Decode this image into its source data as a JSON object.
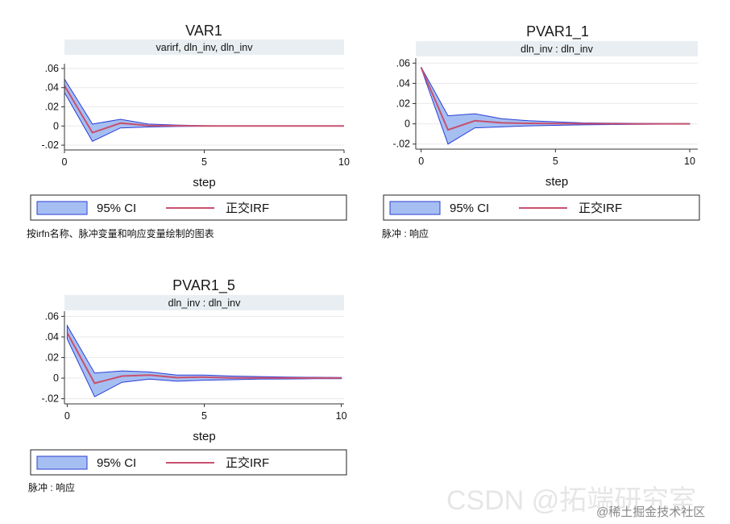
{
  "chart_data": [
    {
      "type": "area",
      "title": "VAR1",
      "subtitle": "varirf, dln_inv, dln_inv",
      "xlabel": "step",
      "ylabel": "",
      "xlim": [
        0,
        10
      ],
      "ylim": [
        -0.025,
        0.065
      ],
      "xticks": [
        {
          "v": 0,
          "t": "0"
        },
        {
          "v": 5,
          "t": "5"
        },
        {
          "v": 10,
          "t": "10"
        }
      ],
      "yticks": [
        {
          "v": 0.06,
          "t": ".06"
        },
        {
          "v": 0.04,
          "t": ".04"
        },
        {
          "v": 0.02,
          "t": ".02"
        },
        {
          "v": 0,
          "t": "0"
        },
        {
          "v": -0.02,
          "t": "-.02"
        }
      ],
      "grid": true,
      "legend": {
        "position": "bottom",
        "ci_label": "95% CI",
        "irf_label": "正交IRF"
      },
      "note": "按irfn名称、脉冲变量和响应变量绘制的图表",
      "x": [
        0,
        1,
        2,
        3,
        4,
        5,
        6,
        7,
        8,
        9,
        10
      ],
      "series": [
        {
          "role": "upper",
          "values": [
            0.049,
            0.002,
            0.007,
            0.002,
            0.001,
            0.0003,
            0.0001,
            0,
            0,
            0,
            0
          ]
        },
        {
          "role": "lower",
          "values": [
            0.035,
            -0.016,
            -0.002,
            -0.001,
            -0.0005,
            -0.0002,
            -0.0001,
            0,
            0,
            0,
            0
          ]
        },
        {
          "role": "irf",
          "values": [
            0.042,
            -0.007,
            0.003,
            0.0005,
            0.0002,
            0.0001,
            0,
            0,
            0,
            0,
            0
          ]
        }
      ]
    },
    {
      "type": "area",
      "title": "PVAR1_1",
      "subtitle": "dln_inv : dln_inv",
      "xlabel": "step",
      "ylabel": "",
      "xlim": [
        -0.2,
        10.3
      ],
      "ylim": [
        -0.025,
        0.065
      ],
      "xticks": [
        {
          "v": 0,
          "t": "0"
        },
        {
          "v": 5,
          "t": "5"
        },
        {
          "v": 10,
          "t": "10"
        }
      ],
      "yticks": [
        {
          "v": 0.06,
          "t": ".06"
        },
        {
          "v": 0.04,
          "t": ".04"
        },
        {
          "v": 0.02,
          "t": ".02"
        },
        {
          "v": 0,
          "t": "0"
        },
        {
          "v": -0.02,
          "t": "-.02"
        }
      ],
      "grid": true,
      "legend": {
        "position": "bottom",
        "ci_label": "95% CI",
        "irf_label": "正交IRF"
      },
      "note": "脉冲 : 响应",
      "x": [
        0,
        1,
        2,
        3,
        4,
        5,
        6,
        7,
        8,
        9,
        10
      ],
      "series": [
        {
          "role": "upper",
          "values": [
            0.056,
            0.008,
            0.01,
            0.005,
            0.003,
            0.002,
            0.001,
            0.0007,
            0.0005,
            0.0003,
            0.0002
          ]
        },
        {
          "role": "lower",
          "values": [
            0.055,
            -0.02,
            -0.004,
            -0.003,
            -0.002,
            -0.0015,
            -0.001,
            -0.0007,
            -0.0005,
            -0.0003,
            -0.0002
          ]
        },
        {
          "role": "irf",
          "values": [
            0.0555,
            -0.006,
            0.003,
            0.001,
            0.0005,
            0.0003,
            0.0002,
            0.0001,
            0,
            0,
            0
          ]
        }
      ]
    },
    {
      "type": "area",
      "title": "PVAR1_5",
      "subtitle": "dln_inv : dln_inv",
      "xlabel": "step",
      "ylabel": "",
      "xlim": [
        -0.1,
        10.1
      ],
      "ylim": [
        -0.025,
        0.065
      ],
      "xticks": [
        {
          "v": 0,
          "t": "0"
        },
        {
          "v": 5,
          "t": "5"
        },
        {
          "v": 10,
          "t": "10"
        }
      ],
      "yticks": [
        {
          "v": 0.06,
          "t": ".06"
        },
        {
          "v": 0.04,
          "t": ".04"
        },
        {
          "v": 0.02,
          "t": ".02"
        },
        {
          "v": 0,
          "t": "0"
        },
        {
          "v": -0.02,
          "t": "-.02"
        }
      ],
      "grid": true,
      "legend": {
        "position": "bottom",
        "ci_label": "95% CI",
        "irf_label": "正交IRF"
      },
      "note": "脉冲 : 响应",
      "x": [
        0,
        1,
        2,
        3,
        4,
        5,
        6,
        7,
        8,
        9,
        10
      ],
      "series": [
        {
          "role": "upper",
          "values": [
            0.051,
            0.005,
            0.007,
            0.006,
            0.003,
            0.003,
            0.002,
            0.0015,
            0.001,
            0.0008,
            0.0006
          ]
        },
        {
          "role": "lower",
          "values": [
            0.038,
            -0.018,
            -0.004,
            -0.001,
            -0.003,
            -0.002,
            -0.0015,
            -0.001,
            -0.0008,
            -0.0006,
            -0.0005
          ]
        },
        {
          "role": "irf",
          "values": [
            0.044,
            -0.005,
            0.002,
            0.003,
            0.0005,
            0.001,
            0.0003,
            0.0003,
            0.0001,
            0.0001,
            0.0001
          ]
        }
      ]
    }
  ],
  "colors": {
    "ci_fill": "#a6bff2",
    "ci_line": "#2a3fd6",
    "irf_line": "#c7506f",
    "strip_bg": "#e8eef2",
    "grid": "#eaeaea"
  },
  "watermark": {
    "main": "CSDN @拓端研究室",
    "sub": "@稀土掘金技术社区"
  }
}
